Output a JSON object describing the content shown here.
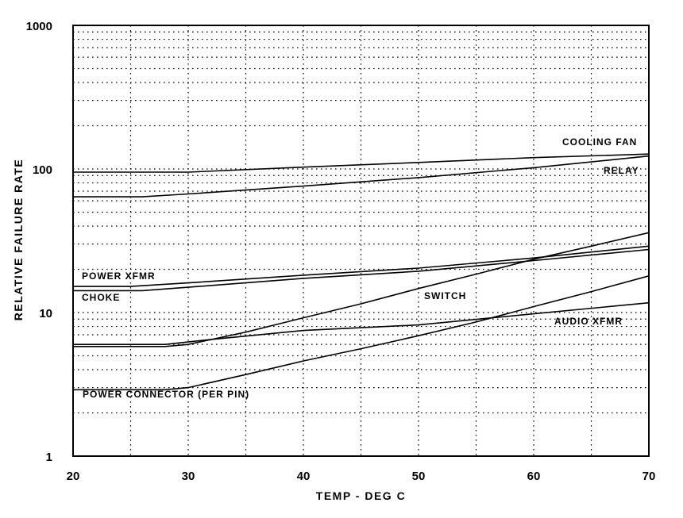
{
  "chart_data": {
    "type": "line",
    "xlabel": "TEMP - DEG C",
    "ylabel": "RELATIVE FAILURE RATE",
    "xlim": [
      20,
      70
    ],
    "ylim": [
      1,
      1000
    ],
    "yscale": "log",
    "grid": true,
    "x_ticks": [
      "20",
      "30",
      "40",
      "50",
      "60",
      "70"
    ],
    "y_ticks": [
      "1",
      "10",
      "100",
      "1000"
    ],
    "series": [
      {
        "name": "COOLING FAN",
        "x": [
          20,
          30,
          40,
          50,
          60,
          70
        ],
        "y": [
          95,
          95,
          103,
          111,
          120,
          127
        ]
      },
      {
        "name": "RELAY",
        "x": [
          20,
          26,
          30,
          40,
          50,
          60,
          70
        ],
        "y": [
          64,
          64,
          67,
          76,
          87,
          102,
          123
        ]
      },
      {
        "name": "POWER XFMR",
        "x": [
          20,
          25,
          30,
          40,
          50,
          60,
          70
        ],
        "y": [
          15.2,
          15.2,
          16.1,
          18.2,
          20.4,
          24,
          29
        ]
      },
      {
        "name": "CHOKE",
        "x": [
          20,
          26,
          30,
          40,
          50,
          60,
          70
        ],
        "y": [
          14.2,
          14.2,
          15,
          17.3,
          19.4,
          23,
          27.5
        ]
      },
      {
        "name": "SWITCH",
        "x": [
          20,
          28,
          30,
          35,
          40,
          45,
          50,
          55,
          60,
          65,
          70
        ],
        "y": [
          5.8,
          5.8,
          6,
          7.3,
          9.2,
          11.5,
          14.7,
          18.5,
          23.5,
          29,
          36
        ]
      },
      {
        "name": "AUDIO XFMR",
        "x": [
          20,
          28,
          32,
          40,
          50,
          60,
          70
        ],
        "y": [
          6,
          6,
          6.5,
          7.5,
          8.2,
          9.8,
          11.7
        ]
      },
      {
        "name": "POWER CONNECTOR (PER PIN)",
        "x": [
          20,
          28,
          30,
          35,
          40,
          45,
          50,
          55,
          60,
          65,
          70
        ],
        "y": [
          2.9,
          2.9,
          3,
          3.7,
          4.6,
          5.6,
          6.9,
          8.6,
          11,
          14,
          18
        ]
      }
    ]
  }
}
